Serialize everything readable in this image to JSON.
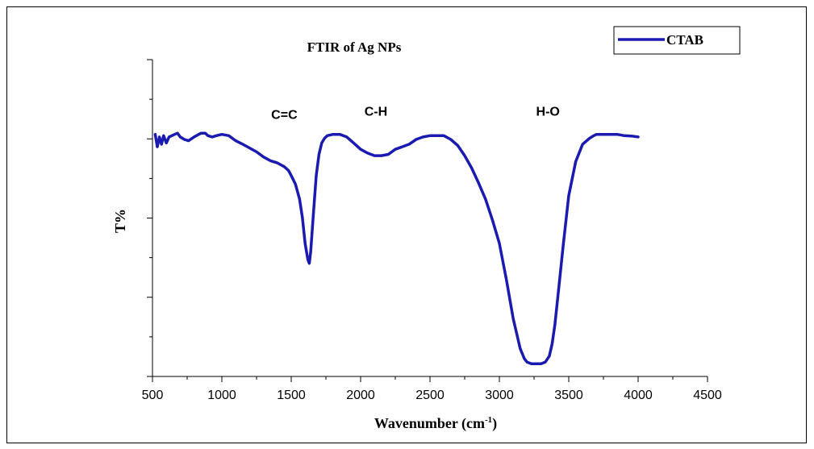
{
  "chart_data": {
    "type": "line",
    "title": "FTIR of Ag NPs",
    "xlabel": "Wavenumber (cm",
    "xlabel_sup": "-1",
    "xlabel_close": ")",
    "ylabel": "T%",
    "xlim": [
      500,
      4500
    ],
    "ylim": [
      0,
      100
    ],
    "x_ticks": [
      500,
      1000,
      1500,
      2000,
      2500,
      3000,
      3500,
      4000,
      4500
    ],
    "x_tick_labels": [
      "500",
      "1000",
      "1500",
      "2000",
      "2500",
      "3000",
      "3500",
      "4000",
      "4500"
    ],
    "y_ticks": [
      0,
      12.5,
      25,
      37.5,
      50,
      62.5,
      75,
      87.5,
      100
    ],
    "y_tick_labels": [],
    "grid": false,
    "legend_position": "top-right",
    "annotations": [
      {
        "text": "C=C",
        "x": 1450,
        "y": 81.3
      },
      {
        "text": "C-H",
        "x": 2110,
        "y": 82.3
      },
      {
        "text": "H-O",
        "x": 3350,
        "y": 82.3
      }
    ],
    "series": [
      {
        "name": "CTAB",
        "color": "#1a1ab0",
        "x": [
          520,
          535,
          550,
          565,
          580,
          600,
          620,
          640,
          660,
          680,
          700,
          730,
          760,
          800,
          850,
          880,
          900,
          930,
          960,
          1000,
          1050,
          1100,
          1150,
          1200,
          1250,
          1300,
          1350,
          1400,
          1450,
          1480,
          1500,
          1530,
          1560,
          1580,
          1600,
          1620,
          1630,
          1640,
          1660,
          1680,
          1700,
          1720,
          1740,
          1760,
          1800,
          1850,
          1900,
          1950,
          2000,
          2050,
          2100,
          2150,
          2200,
          2250,
          2300,
          2350,
          2400,
          2450,
          2500,
          2550,
          2600,
          2650,
          2700,
          2750,
          2800,
          2850,
          2900,
          2950,
          3000,
          3050,
          3100,
          3150,
          3180,
          3200,
          3230,
          3260,
          3300,
          3330,
          3360,
          3380,
          3400,
          3430,
          3460,
          3500,
          3550,
          3600,
          3650,
          3680,
          3700,
          3720,
          3750,
          3800,
          3850,
          3900,
          3950,
          4000
        ],
        "y": [
          76.4,
          72.5,
          75.6,
          73.3,
          76.0,
          73.7,
          75.6,
          76.0,
          76.4,
          76.8,
          75.6,
          74.8,
          74.4,
          75.6,
          76.8,
          76.8,
          76.0,
          75.6,
          76.0,
          76.4,
          76.0,
          74.4,
          73.3,
          72.1,
          70.9,
          69.3,
          68.1,
          67.4,
          66.2,
          65.0,
          63.4,
          60.7,
          56.0,
          50.2,
          42.0,
          36.9,
          35.7,
          39.3,
          51.4,
          63.4,
          70.1,
          73.7,
          75.2,
          76.0,
          76.4,
          76.4,
          75.6,
          73.7,
          71.7,
          70.5,
          69.7,
          69.7,
          70.1,
          71.7,
          72.5,
          73.3,
          74.8,
          75.6,
          76.0,
          76.0,
          76.0,
          74.8,
          72.9,
          69.7,
          65.8,
          61.1,
          56.0,
          49.4,
          42.0,
          30.7,
          18.2,
          8.8,
          5.6,
          4.5,
          4.0,
          4.0,
          4.0,
          4.5,
          6.4,
          10.3,
          16.3,
          28.8,
          41.3,
          57.1,
          67.8,
          73.3,
          75.2,
          76.0,
          76.4,
          76.4,
          76.4,
          76.4,
          76.4,
          76.0,
          75.9,
          75.6
        ]
      }
    ]
  }
}
